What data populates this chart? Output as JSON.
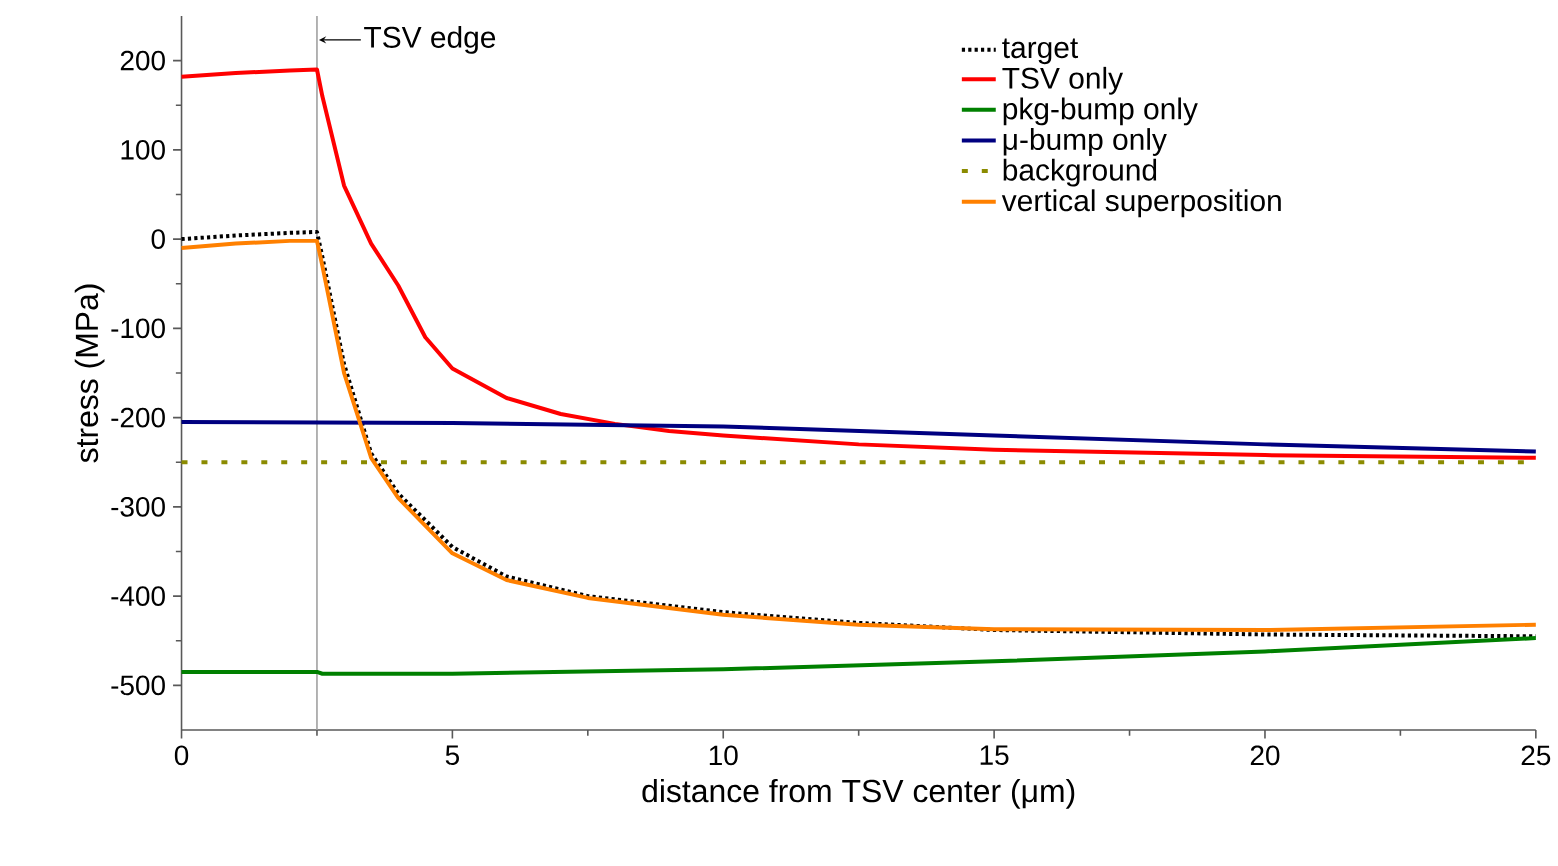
{
  "chart_data": {
    "type": "line",
    "xlabel": "distance from TSV center (μm)",
    "ylabel": "stress (MPa)",
    "xlim": [
      0,
      25
    ],
    "ylim": [
      -550,
      250
    ],
    "xticks": [
      0,
      5,
      10,
      15,
      20,
      25
    ],
    "yticks": [
      -500,
      -400,
      -300,
      -200,
      -100,
      0,
      100,
      200
    ],
    "legend": "top right",
    "marker": "none",
    "ref_lines": [
      {
        "axis": "x",
        "value": 2.5,
        "label": "TSV edge",
        "color": "#a0a0a0"
      }
    ],
    "series": [
      {
        "name": "target",
        "color": "#000000",
        "line_style": "dotted",
        "x": [
          0,
          1,
          2,
          2.5,
          2.6,
          3,
          3.5,
          4,
          5,
          6,
          7.5,
          10,
          12.5,
          15,
          20,
          25
        ],
        "values": [
          0,
          4,
          7,
          8,
          -20,
          -140,
          -240,
          -285,
          -345,
          -378,
          -400,
          -418,
          -430,
          -438,
          -443,
          -445
        ]
      },
      {
        "name": "TSV only",
        "color": "#ff0000",
        "line_style": "solid",
        "x": [
          0,
          1,
          2,
          2.5,
          2.6,
          3,
          3.5,
          4,
          4.5,
          5,
          6,
          7,
          8,
          9,
          10,
          12.5,
          15,
          20,
          25
        ],
        "values": [
          182,
          186,
          189,
          190,
          160,
          60,
          -5,
          -52,
          -110,
          -145,
          -178,
          -196,
          -207,
          -215,
          -220,
          -230,
          -236,
          -242,
          -245
        ]
      },
      {
        "name": "pkg-bump only",
        "color": "#008000",
        "line_style": "solid",
        "x": [
          0,
          2.5,
          2.6,
          5,
          10,
          15,
          20,
          25
        ],
        "values": [
          -485,
          -485,
          -487,
          -487,
          -482,
          -473,
          -462,
          -447
        ]
      },
      {
        "name": "μ-bump only",
        "color": "#000080",
        "line_style": "solid",
        "x": [
          0,
          5,
          10,
          15,
          20,
          25
        ],
        "values": [
          -205,
          -206,
          -210,
          -220,
          -230,
          -238
        ]
      },
      {
        "name": "background",
        "color": "#8b8b00",
        "line_style": "dashed",
        "x": [
          0,
          25
        ],
        "values": [
          -250,
          -250
        ]
      },
      {
        "name": "vertical superposition",
        "color": "#ff8000",
        "line_style": "solid",
        "x": [
          0,
          1,
          2,
          2.5,
          2.6,
          3,
          3.5,
          4,
          5,
          6,
          7.5,
          10,
          12.5,
          15,
          20,
          25
        ],
        "values": [
          -10,
          -5,
          -2,
          -2,
          -30,
          -150,
          -245,
          -290,
          -352,
          -382,
          -402,
          -421,
          -432,
          -437,
          -438,
          -432
        ]
      }
    ]
  }
}
